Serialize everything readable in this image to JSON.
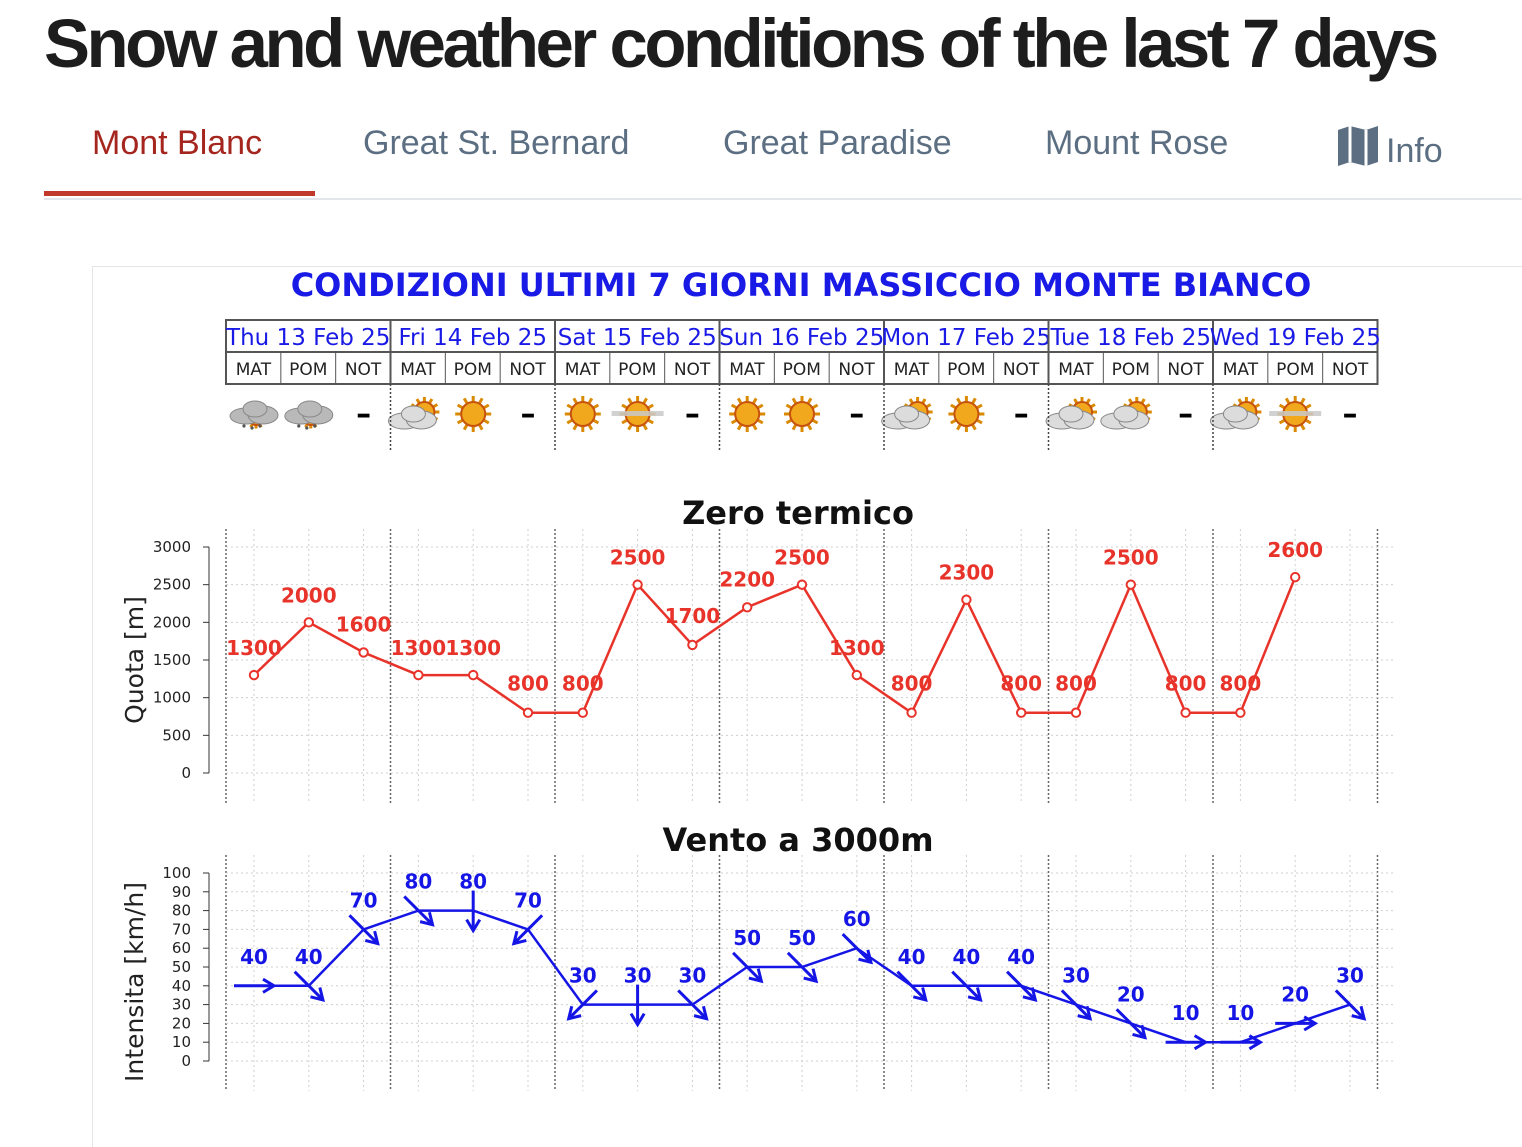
{
  "page": {
    "title": "Snow and weather conditions of the last 7 days"
  },
  "tabs": [
    {
      "label": "Mont Blanc",
      "active": true
    },
    {
      "label": "Great St. Bernard",
      "active": false
    },
    {
      "label": "Great Paradise",
      "active": false
    },
    {
      "label": "Mount Rose",
      "active": false
    },
    {
      "label": "Info",
      "active": false,
      "icon": "map-icon"
    }
  ],
  "colors": {
    "active_tab": "#a5261e",
    "inactive_tab": "#5c6f82",
    "temperature_series": "#e8332a",
    "wind_series": "#1515e6",
    "header_text": "#1a1ae6"
  },
  "bulletin": {
    "title": "CONDIZIONI ULTIMI 7 GIORNI MASSICCIO MONTE BIANCO",
    "days": [
      "Thu 13 Feb 25",
      "Fri 14 Feb 25",
      "Sat 15 Feb 25",
      "Sun 16 Feb 25",
      "Mon 17 Feb 25",
      "Tue 18 Feb 25",
      "Wed 19 Feb 25"
    ],
    "periods": [
      "MAT",
      "POM",
      "NOT"
    ],
    "weather_icons": [
      [
        "snow-cloud-icon",
        "snow-cloud-icon",
        "none"
      ],
      [
        "sun-behind-cloud-icon",
        "sun-icon",
        "none"
      ],
      [
        "sun-icon",
        "sun-with-haze-icon",
        "none"
      ],
      [
        "sun-icon",
        "sun-icon",
        "none"
      ],
      [
        "sun-behind-cloud-icon",
        "sun-icon",
        "none"
      ],
      [
        "cloud-with-sun-icon",
        "cloud-with-sun-icon",
        "none"
      ],
      [
        "sun-behind-cloud-icon",
        "sun-with-haze-icon",
        "none"
      ]
    ],
    "no_data_mark": "–"
  },
  "chart_data": [
    {
      "type": "line",
      "title": "Zero termico",
      "xlabel": "",
      "ylabel": "Quota [m]",
      "ylim": [
        0,
        3000
      ],
      "yticks": [
        "0",
        "500",
        "1000",
        "1500",
        "2000",
        "2500",
        "3000"
      ],
      "grid": true,
      "x": [
        "Thu MAT",
        "Thu POM",
        "Thu NOT",
        "Fri MAT",
        "Fri POM",
        "Fri NOT",
        "Sat MAT",
        "Sat POM",
        "Sat NOT",
        "Sun MAT",
        "Sun POM",
        "Sun NOT",
        "Mon MAT",
        "Mon POM",
        "Mon NOT",
        "Tue MAT",
        "Tue POM",
        "Tue NOT",
        "Wed MAT",
        "Wed POM"
      ],
      "values": [
        1300,
        2000,
        1600,
        1300,
        1300,
        800,
        800,
        2500,
        1700,
        2200,
        2500,
        1300,
        800,
        2300,
        800,
        800,
        2500,
        800,
        800,
        2600
      ],
      "labels": [
        "1300",
        "2000",
        "1600",
        "1300",
        "1300",
        "800",
        "800",
        "2500",
        "1700",
        "2200",
        "2500",
        "1300",
        "800",
        "2300",
        "800",
        "800",
        "2500",
        "800",
        "800",
        "2600"
      ]
    },
    {
      "type": "line",
      "title": "Vento a 3000m",
      "xlabel": "",
      "ylabel": "Intensita [km/h]",
      "ylim": [
        0,
        100
      ],
      "yticks": [
        "0",
        "10",
        "20",
        "30",
        "40",
        "50",
        "60",
        "70",
        "80",
        "90",
        "100"
      ],
      "grid": true,
      "x": [
        "Thu MAT",
        "Thu POM",
        "Thu NOT",
        "Fri MAT",
        "Fri POM",
        "Fri NOT",
        "Sat MAT",
        "Sat POM",
        "Sat NOT",
        "Sun MAT",
        "Sun POM",
        "Sun NOT",
        "Mon MAT",
        "Mon POM",
        "Mon NOT",
        "Tue MAT",
        "Tue POM",
        "Tue NOT",
        "Wed MAT",
        "Wed POM",
        "Wed NOT"
      ],
      "values": [
        40,
        40,
        70,
        80,
        80,
        70,
        30,
        30,
        30,
        50,
        50,
        60,
        40,
        40,
        40,
        30,
        20,
        10,
        10,
        20,
        30
      ],
      "labels": [
        "40",
        "40",
        "70",
        "80",
        "80",
        "70",
        "30",
        "30",
        "30",
        "50",
        "50",
        "60",
        "40",
        "40",
        "40",
        "30",
        "20",
        "10",
        "10",
        "20",
        "30"
      ],
      "wind_direction_to_deg": [
        0,
        45,
        45,
        45,
        90,
        135,
        135,
        90,
        45,
        45,
        45,
        45,
        45,
        45,
        45,
        45,
        45,
        0,
        0,
        0,
        45
      ]
    }
  ]
}
